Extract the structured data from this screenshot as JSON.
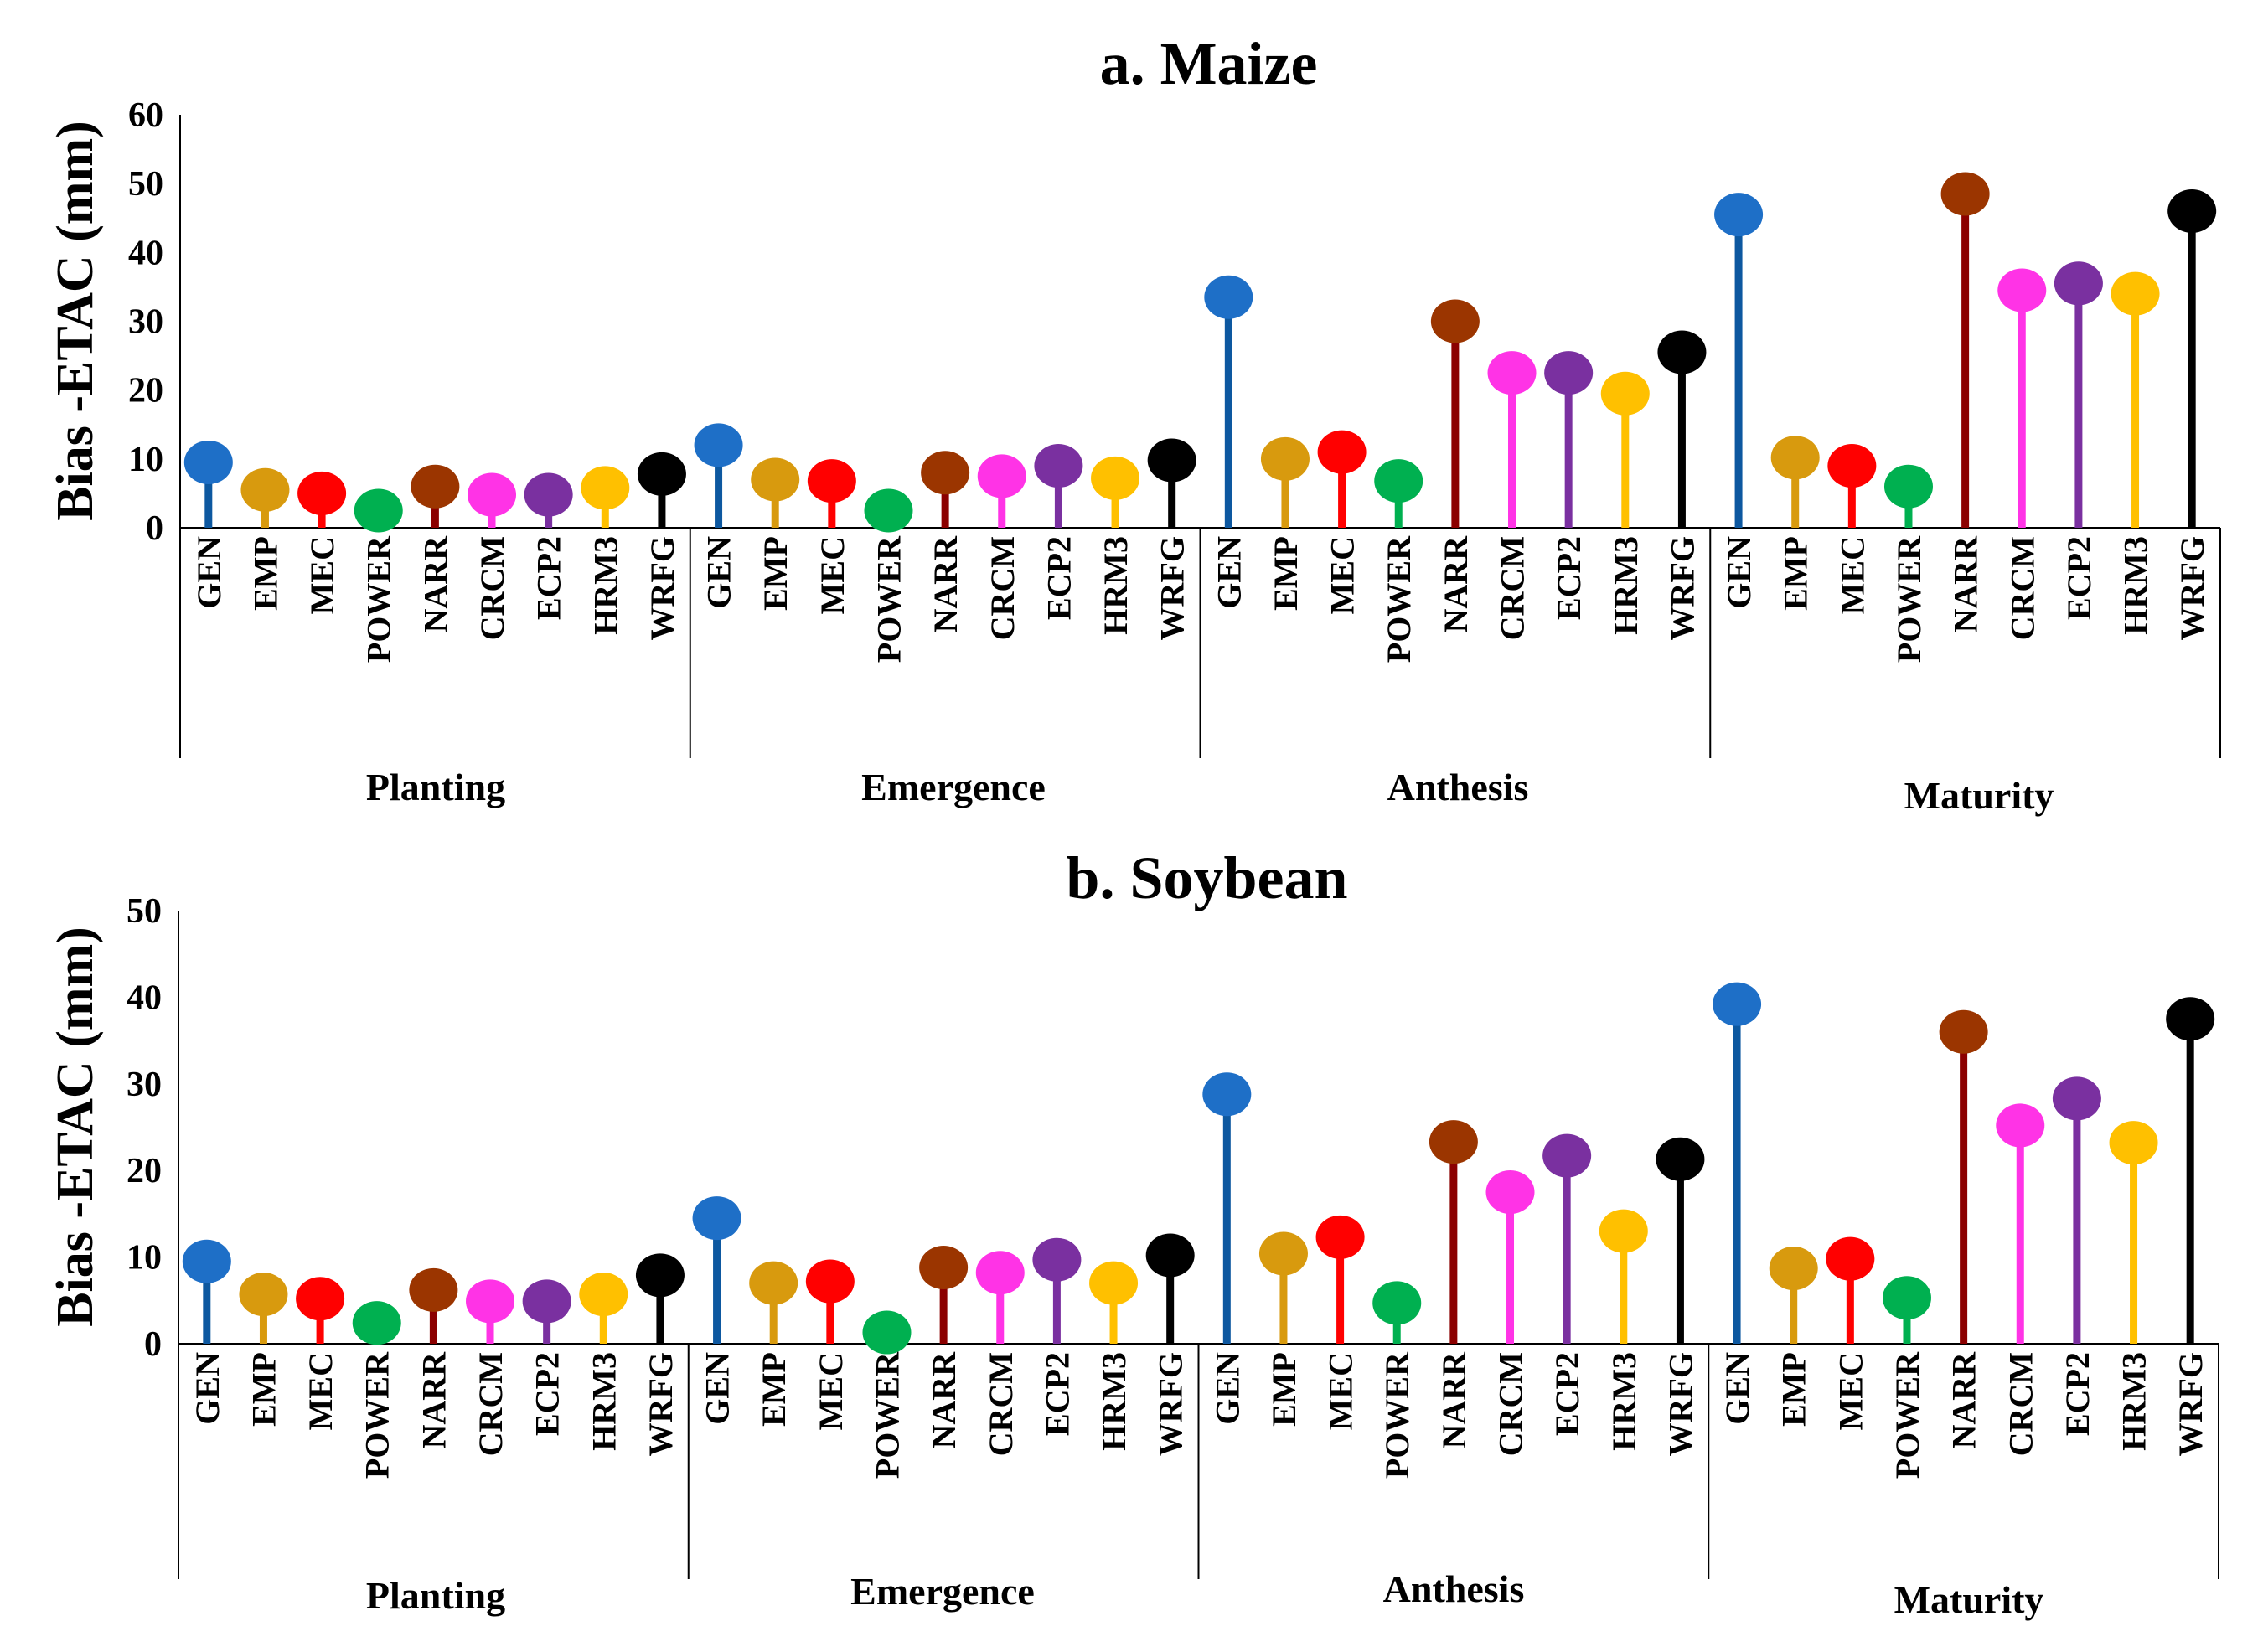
{
  "chart_data": [
    {
      "type": "lollipop",
      "title": "a. Maize",
      "ylabel": "Bias -ETAC (mm)",
      "xlabel": "",
      "ylim": [
        0,
        60
      ],
      "yticks": [
        "0",
        "10",
        "20",
        "30",
        "40",
        "50",
        "60"
      ],
      "groups": [
        "Planting",
        "Emergence",
        "Anthesis",
        "Maturity"
      ],
      "categories": [
        "GEN",
        "EMP",
        "MEC",
        "POWER",
        "NARR",
        "CRCM",
        "ECP2",
        "HRM3",
        "WRFG"
      ],
      "values": [
        [
          9.5,
          5.5,
          5.0,
          2.5,
          6.0,
          4.8,
          4.8,
          5.8,
          7.8
        ],
        [
          12.0,
          7.0,
          6.8,
          2.5,
          8.0,
          7.5,
          9.0,
          7.2,
          9.8
        ],
        [
          33.5,
          10.0,
          11.0,
          6.8,
          30.0,
          22.5,
          22.5,
          19.5,
          25.5
        ],
        [
          45.5,
          10.2,
          9.0,
          6.0,
          48.5,
          34.5,
          35.5,
          34.0,
          46.0
        ]
      ]
    },
    {
      "type": "lollipop",
      "title": "b. Soybean",
      "ylabel": "Bias -ETAC (mm)",
      "xlabel": "",
      "ylim": [
        0,
        50
      ],
      "yticks": [
        "0",
        "10",
        "20",
        "30",
        "40",
        "50"
      ],
      "groups": [
        "Planting",
        "Emergence",
        "Anthesis",
        "Maturity"
      ],
      "categories": [
        "GEN",
        "EMP",
        "MEC",
        "POWER",
        "NARR",
        "CRCM",
        "ECP2",
        "HRM3",
        "WRFG"
      ],
      "values": [
        [
          9.5,
          5.7,
          5.2,
          2.4,
          6.2,
          4.9,
          4.9,
          5.7,
          7.9
        ],
        [
          14.5,
          7.0,
          7.2,
          1.3,
          8.8,
          8.2,
          9.7,
          7.0,
          10.2
        ],
        [
          28.8,
          10.4,
          12.3,
          4.7,
          23.3,
          17.5,
          21.7,
          13.0,
          21.3
        ],
        [
          39.2,
          8.7,
          9.8,
          5.3,
          36.0,
          25.2,
          28.3,
          23.2,
          37.5
        ]
      ]
    }
  ],
  "series_colors": {
    "GEN": "#1e6fc7",
    "EMP": "#d89a0e",
    "MEC": "#ff0000",
    "POWER": "#00b050",
    "NARR": "#9b3500",
    "CRCM": "#ff33e6",
    "ECP2": "#7a30a0",
    "HRM3": "#ffc000",
    "WRFG": "#000000"
  },
  "stem_colors": {
    "GEN": "#0d58a0",
    "EMP": "#d89a0e",
    "MEC": "#ff0000",
    "POWER": "#00b050",
    "NARR": "#8b0000",
    "CRCM": "#ff33e6",
    "ECP2": "#7a30a0",
    "HRM3": "#ffc000",
    "WRFG": "#000000"
  }
}
